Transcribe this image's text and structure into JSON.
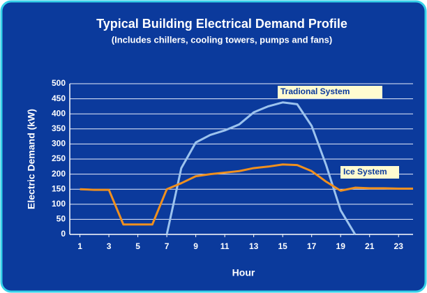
{
  "chart_data": {
    "type": "line",
    "title": "Typical Building Electrical Demand Profile",
    "subtitle": "(Includes chillers, cooling towers, pumps and fans)",
    "x_label": "Hour",
    "y_label": "Electric Demand (kW)",
    "x": [
      1,
      2,
      3,
      4,
      5,
      6,
      7,
      8,
      9,
      10,
      11,
      12,
      13,
      14,
      15,
      16,
      17,
      18,
      19,
      20,
      21,
      22,
      23,
      24
    ],
    "series": [
      {
        "name": "Tradional System",
        "color": "#9cc3ee",
        "values": [
          null,
          null,
          null,
          null,
          null,
          null,
          0,
          220,
          305,
          330,
          345,
          365,
          405,
          425,
          438,
          432,
          360,
          230,
          80,
          0,
          null,
          null,
          null,
          null
        ]
      },
      {
        "name": "Ice System",
        "color": "#f0901e",
        "values": [
          150,
          148,
          148,
          33,
          33,
          33,
          150,
          170,
          193,
          200,
          205,
          210,
          220,
          225,
          232,
          230,
          210,
          175,
          145,
          155,
          153,
          153,
          152,
          152
        ]
      }
    ],
    "xlim": [
      0.3,
      24
    ],
    "xticks": [
      1,
      3,
      5,
      7,
      9,
      11,
      13,
      15,
      17,
      19,
      21,
      23
    ],
    "ylim": [
      0,
      500
    ],
    "yticks": [
      0,
      50,
      100,
      150,
      200,
      250,
      300,
      350,
      400,
      450,
      500
    ],
    "grid": true
  }
}
